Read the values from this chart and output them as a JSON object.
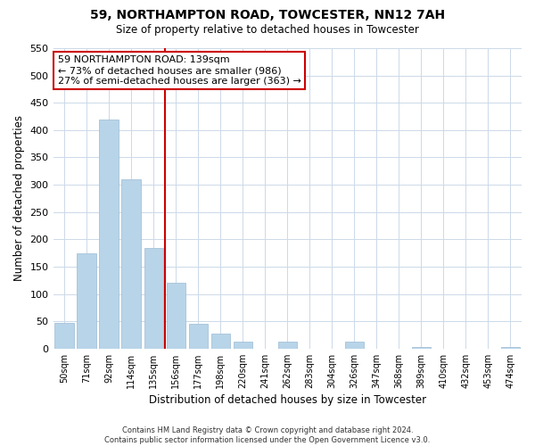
{
  "title": "59, NORTHAMPTON ROAD, TOWCESTER, NN12 7AH",
  "subtitle": "Size of property relative to detached houses in Towcester",
  "xlabel": "Distribution of detached houses by size in Towcester",
  "ylabel": "Number of detached properties",
  "bar_labels": [
    "50sqm",
    "71sqm",
    "92sqm",
    "114sqm",
    "135sqm",
    "156sqm",
    "177sqm",
    "198sqm",
    "220sqm",
    "241sqm",
    "262sqm",
    "283sqm",
    "304sqm",
    "326sqm",
    "347sqm",
    "368sqm",
    "389sqm",
    "410sqm",
    "432sqm",
    "453sqm",
    "474sqm"
  ],
  "bar_values": [
    47,
    175,
    420,
    310,
    185,
    120,
    45,
    27,
    13,
    0,
    12,
    0,
    0,
    12,
    0,
    0,
    3,
    0,
    0,
    0,
    3
  ],
  "bar_color": "#b8d4e8",
  "vline_color": "#cc0000",
  "vline_index": 4,
  "ylim": [
    0,
    550
  ],
  "yticks": [
    0,
    50,
    100,
    150,
    200,
    250,
    300,
    350,
    400,
    450,
    500,
    550
  ],
  "annotation_title": "59 NORTHAMPTON ROAD: 139sqm",
  "annotation_line1": "← 73% of detached houses are smaller (986)",
  "annotation_line2": "27% of semi-detached houses are larger (363) →",
  "annotation_box_color": "#ffffff",
  "annotation_box_edge": "#cc0000",
  "footer_line1": "Contains HM Land Registry data © Crown copyright and database right 2024.",
  "footer_line2": "Contains public sector information licensed under the Open Government Licence v3.0.",
  "background_color": "#ffffff",
  "grid_color": "#ccd9e8"
}
